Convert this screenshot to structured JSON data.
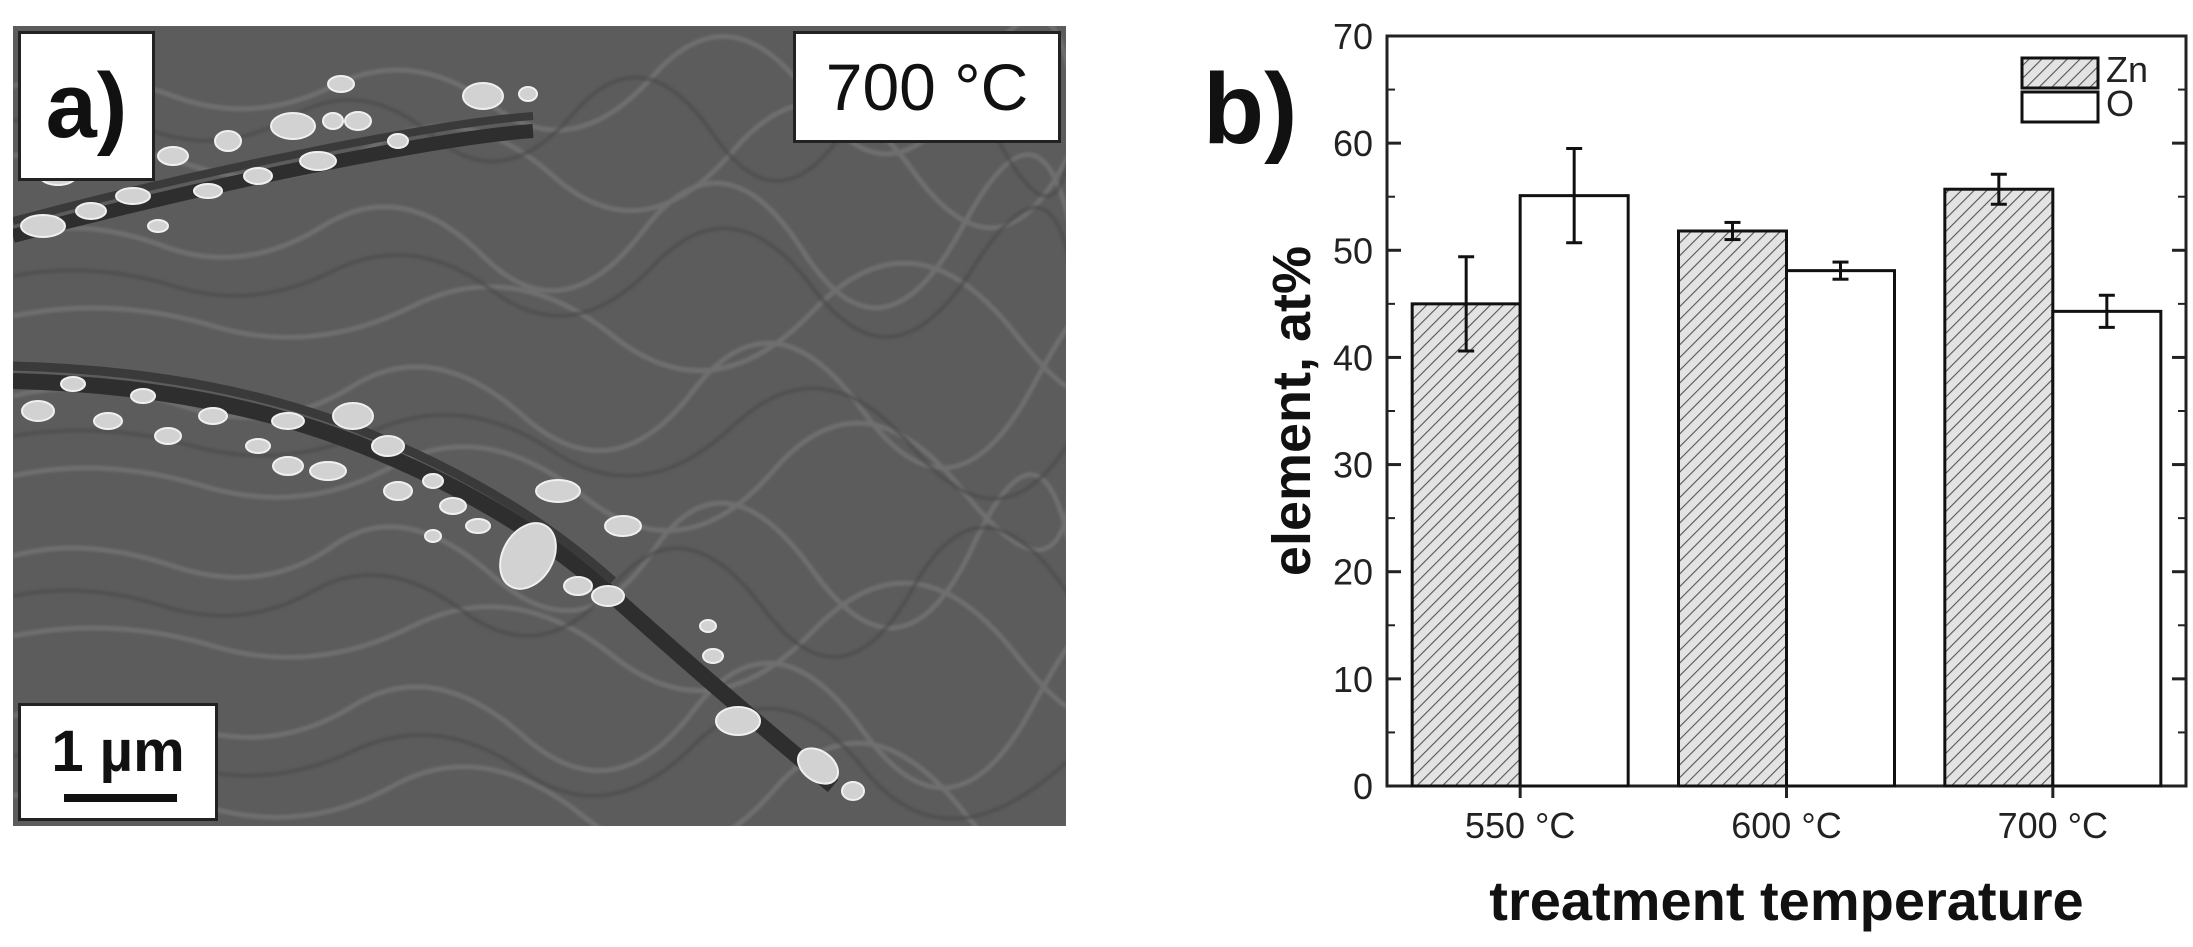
{
  "panel_a": {
    "label": "a)",
    "temperature": "700 °C",
    "scale_bar": "1 µm"
  },
  "panel_b": {
    "label": "b)"
  },
  "chart_data": {
    "type": "bar",
    "categories": [
      "550 °C",
      "600 °C",
      "700 °C"
    ],
    "series": [
      {
        "name": "Zn",
        "values": [
          45.0,
          51.8,
          55.7
        ],
        "errors": [
          4.4,
          0.8,
          1.4
        ],
        "pattern": "hatched"
      },
      {
        "name": "O",
        "values": [
          55.1,
          48.1,
          44.3
        ],
        "errors": [
          4.4,
          0.8,
          1.5
        ],
        "pattern": "white"
      }
    ],
    "xlabel": "treatment temperature",
    "ylabel": "element, at%",
    "ylim": [
      0,
      70
    ],
    "yticks": [
      0,
      10,
      20,
      30,
      40,
      50,
      60,
      70
    ],
    "grid": false,
    "legend": "top-right"
  }
}
